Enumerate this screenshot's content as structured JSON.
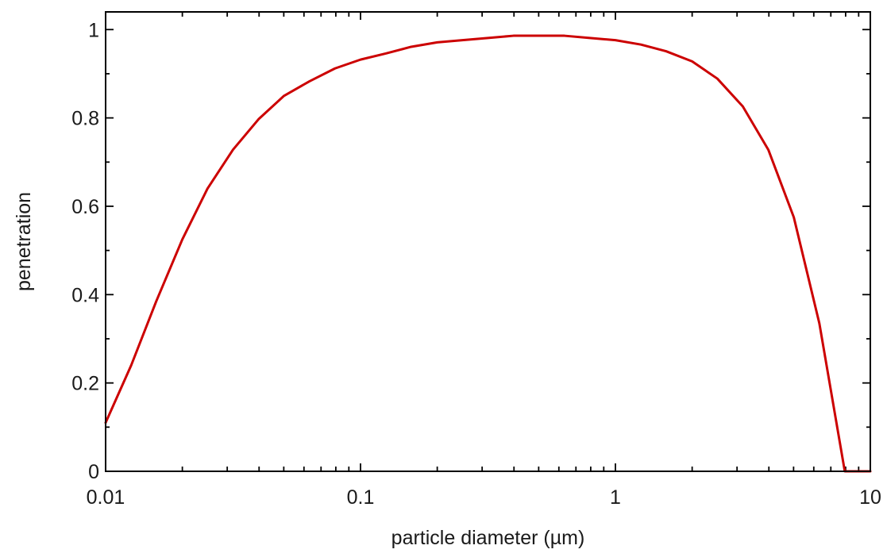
{
  "chart_data": {
    "type": "line",
    "x_scale": "log",
    "xlim": [
      0.01,
      10
    ],
    "ylim": [
      0,
      1.04
    ],
    "xlabel": "particle diameter (µm)",
    "ylabel": "penetration",
    "x_tick_labels": [
      {
        "value": 0.01,
        "label": "0.01"
      },
      {
        "value": 0.1,
        "label": "0.1"
      },
      {
        "value": 1,
        "label": "1"
      },
      {
        "value": 10,
        "label": "10"
      }
    ],
    "y_tick_labels": [
      {
        "value": 0,
        "label": "0"
      },
      {
        "value": 0.2,
        "label": "0.2"
      },
      {
        "value": 0.4,
        "label": "0.4"
      },
      {
        "value": 0.6,
        "label": "0.6"
      },
      {
        "value": 0.8,
        "label": "0.8"
      },
      {
        "value": 1,
        "label": "1"
      }
    ],
    "y_minor_ticks": [
      0.1,
      0.3,
      0.5,
      0.7,
      0.9
    ],
    "grid": false,
    "series": [
      {
        "color": "#cc0000",
        "points": [
          [
            0.01,
            0.11
          ],
          [
            0.0126,
            0.24
          ],
          [
            0.0158,
            0.385
          ],
          [
            0.02,
            0.525
          ],
          [
            0.0251,
            0.64
          ],
          [
            0.0316,
            0.728
          ],
          [
            0.0398,
            0.797
          ],
          [
            0.0501,
            0.85
          ],
          [
            0.0631,
            0.883
          ],
          [
            0.0794,
            0.912
          ],
          [
            0.1,
            0.932
          ],
          [
            0.126,
            0.946
          ],
          [
            0.158,
            0.961
          ],
          [
            0.2,
            0.971
          ],
          [
            0.251,
            0.976
          ],
          [
            0.316,
            0.981
          ],
          [
            0.398,
            0.986
          ],
          [
            0.501,
            0.986
          ],
          [
            0.631,
            0.986
          ],
          [
            0.794,
            0.981
          ],
          [
            1.0,
            0.976
          ],
          [
            1.26,
            0.966
          ],
          [
            1.58,
            0.951
          ],
          [
            2.0,
            0.928
          ],
          [
            2.51,
            0.889
          ],
          [
            3.16,
            0.826
          ],
          [
            3.98,
            0.728
          ],
          [
            5.01,
            0.575
          ],
          [
            6.31,
            0.335
          ],
          [
            7.94,
            0.0
          ],
          [
            10.0,
            0.0
          ]
        ]
      }
    ]
  }
}
